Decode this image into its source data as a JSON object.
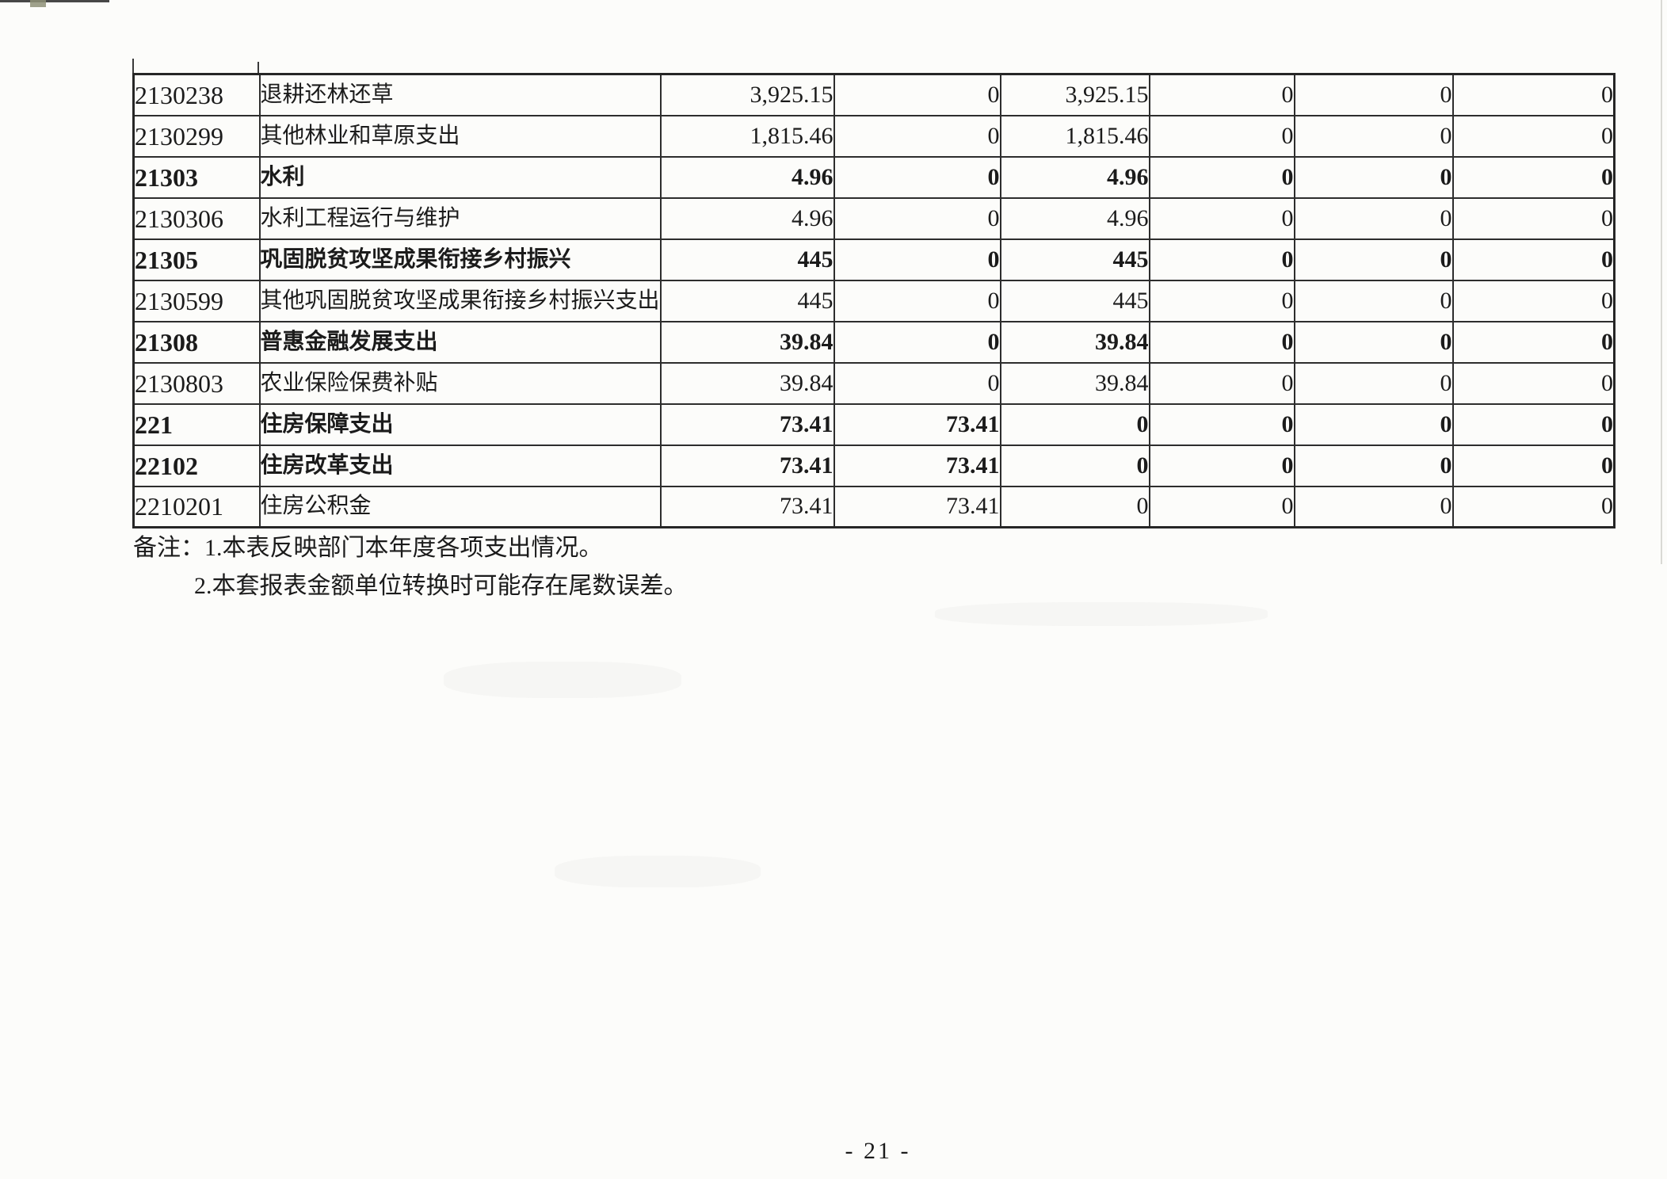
{
  "colors": {
    "paper": "#fcfcfa",
    "ink": "#1b1b1b",
    "table_line": "#2d2d2d"
  },
  "table": {
    "rows": [
      {
        "code": "2130238",
        "name": "退耕还林还草",
        "bold": false,
        "values": [
          "3,925.15",
          "0",
          "3,925.15",
          "0",
          "0",
          "0"
        ]
      },
      {
        "code": "2130299",
        "name": "其他林业和草原支出",
        "bold": false,
        "values": [
          "1,815.46",
          "0",
          "1,815.46",
          "0",
          "0",
          "0"
        ]
      },
      {
        "code": "21303",
        "name": "水利",
        "bold": true,
        "values": [
          "4.96",
          "0",
          "4.96",
          "0",
          "0",
          "0"
        ]
      },
      {
        "code": "2130306",
        "name": "水利工程运行与维护",
        "bold": false,
        "values": [
          "4.96",
          "0",
          "4.96",
          "0",
          "0",
          "0"
        ]
      },
      {
        "code": "21305",
        "name": "巩固脱贫攻坚成果衔接乡村振兴",
        "bold": true,
        "values": [
          "445",
          "0",
          "445",
          "0",
          "0",
          "0"
        ]
      },
      {
        "code": "2130599",
        "name": "其他巩固脱贫攻坚成果衔接乡村振兴支出",
        "bold": false,
        "values": [
          "445",
          "0",
          "445",
          "0",
          "0",
          "0"
        ]
      },
      {
        "code": "21308",
        "name": "普惠金融发展支出",
        "bold": true,
        "values": [
          "39.84",
          "0",
          "39.84",
          "0",
          "0",
          "0"
        ]
      },
      {
        "code": "2130803",
        "name": "农业保险保费补贴",
        "bold": false,
        "values": [
          "39.84",
          "0",
          "39.84",
          "0",
          "0",
          "0"
        ]
      },
      {
        "code": "221",
        "name": "住房保障支出",
        "bold": true,
        "values": [
          "73.41",
          "73.41",
          "0",
          "0",
          "0",
          "0"
        ]
      },
      {
        "code": "22102",
        "name": "住房改革支出",
        "bold": true,
        "values": [
          "73.41",
          "73.41",
          "0",
          "0",
          "0",
          "0"
        ]
      },
      {
        "code": "2210201",
        "name": "住房公积金",
        "bold": false,
        "values": [
          "73.41",
          "73.41",
          "0",
          "0",
          "0",
          "0"
        ]
      }
    ]
  },
  "notes": {
    "line1": "备注：1.本表反映部门本年度各项支出情况。",
    "line2": "2.本套报表金额单位转换时可能存在尾数误差。"
  },
  "footer": {
    "page_number": "- 21 -"
  }
}
